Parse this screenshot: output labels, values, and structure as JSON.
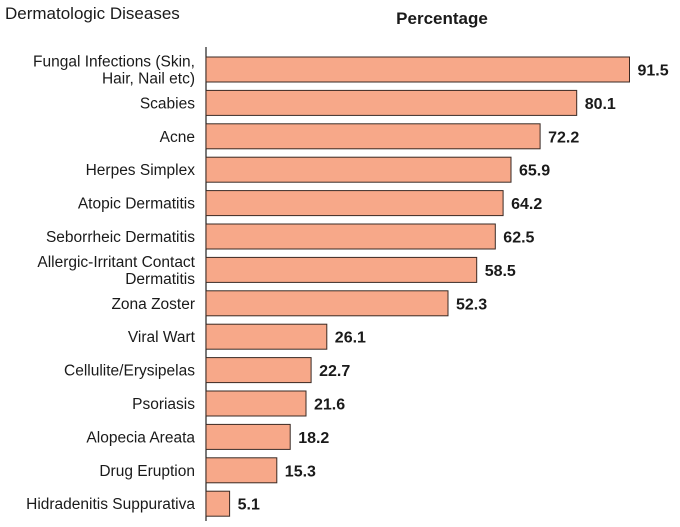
{
  "chart_data": {
    "type": "bar",
    "orientation": "horizontal",
    "ylabel": "Dermatologic Diseases",
    "title": "Percentage",
    "categories": [
      "Fungal Infections (Skin,|Hair, Nail etc)",
      "Scabies",
      "Acne",
      "Herpes Simplex",
      "Atopic Dermatitis",
      "Seborrheic Dermatitis",
      "Allergic-Irritant Contact|Dermatitis",
      "Zona Zoster",
      "Viral Wart",
      "Cellulite/Erysipelas",
      "Psoriasis",
      "Alopecia Areata",
      "Drug Eruption",
      "Hidradenitis Suppurativa"
    ],
    "values": [
      91.5,
      80.1,
      72.2,
      65.9,
      64.2,
      62.5,
      58.5,
      52.3,
      26.1,
      22.7,
      21.6,
      18.2,
      15.3,
      5.1
    ],
    "value_labels": [
      "91.5",
      "80.1",
      "72.2",
      "65.9",
      "64.2",
      "62.5",
      "58.5",
      "52.3",
      "26.1",
      "22.7",
      "21.6",
      "18.2",
      "15.3",
      "5.1"
    ],
    "xlim": [
      0,
      100
    ],
    "grid": false,
    "legend": "none",
    "bar_color": "#f7a889",
    "bar_edge_color": "#3a2a24"
  }
}
